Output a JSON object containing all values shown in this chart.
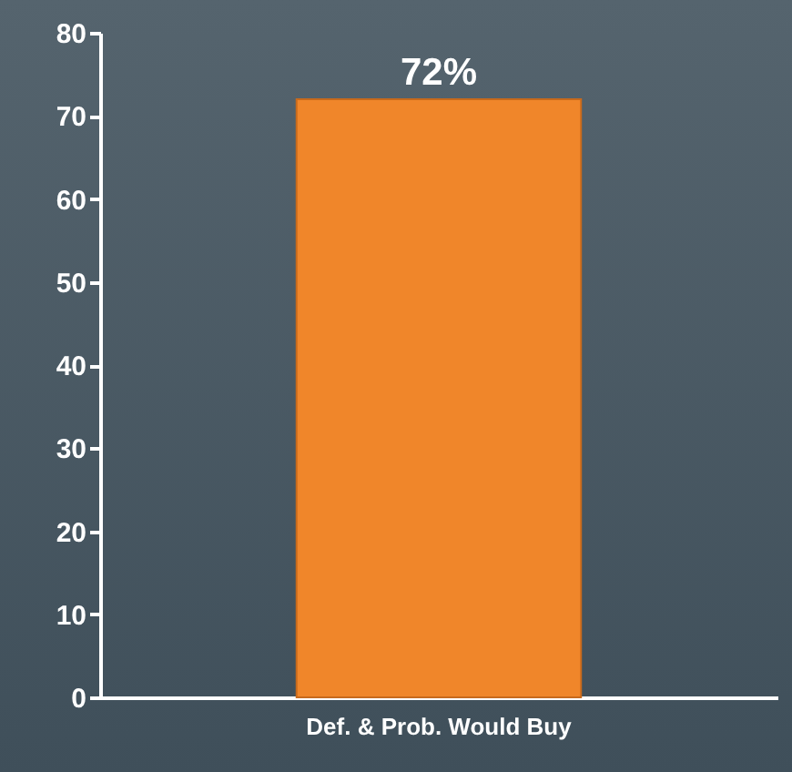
{
  "chart_data": {
    "type": "bar",
    "categories": [
      "Def. & Prob. Would Buy"
    ],
    "values": [
      72
    ],
    "value_labels": [
      "72%"
    ],
    "color": "#f0862a",
    "ylim": [
      0,
      80
    ],
    "yticks": [
      0,
      10,
      20,
      30,
      40,
      50,
      60,
      70,
      80
    ],
    "grid": false
  }
}
